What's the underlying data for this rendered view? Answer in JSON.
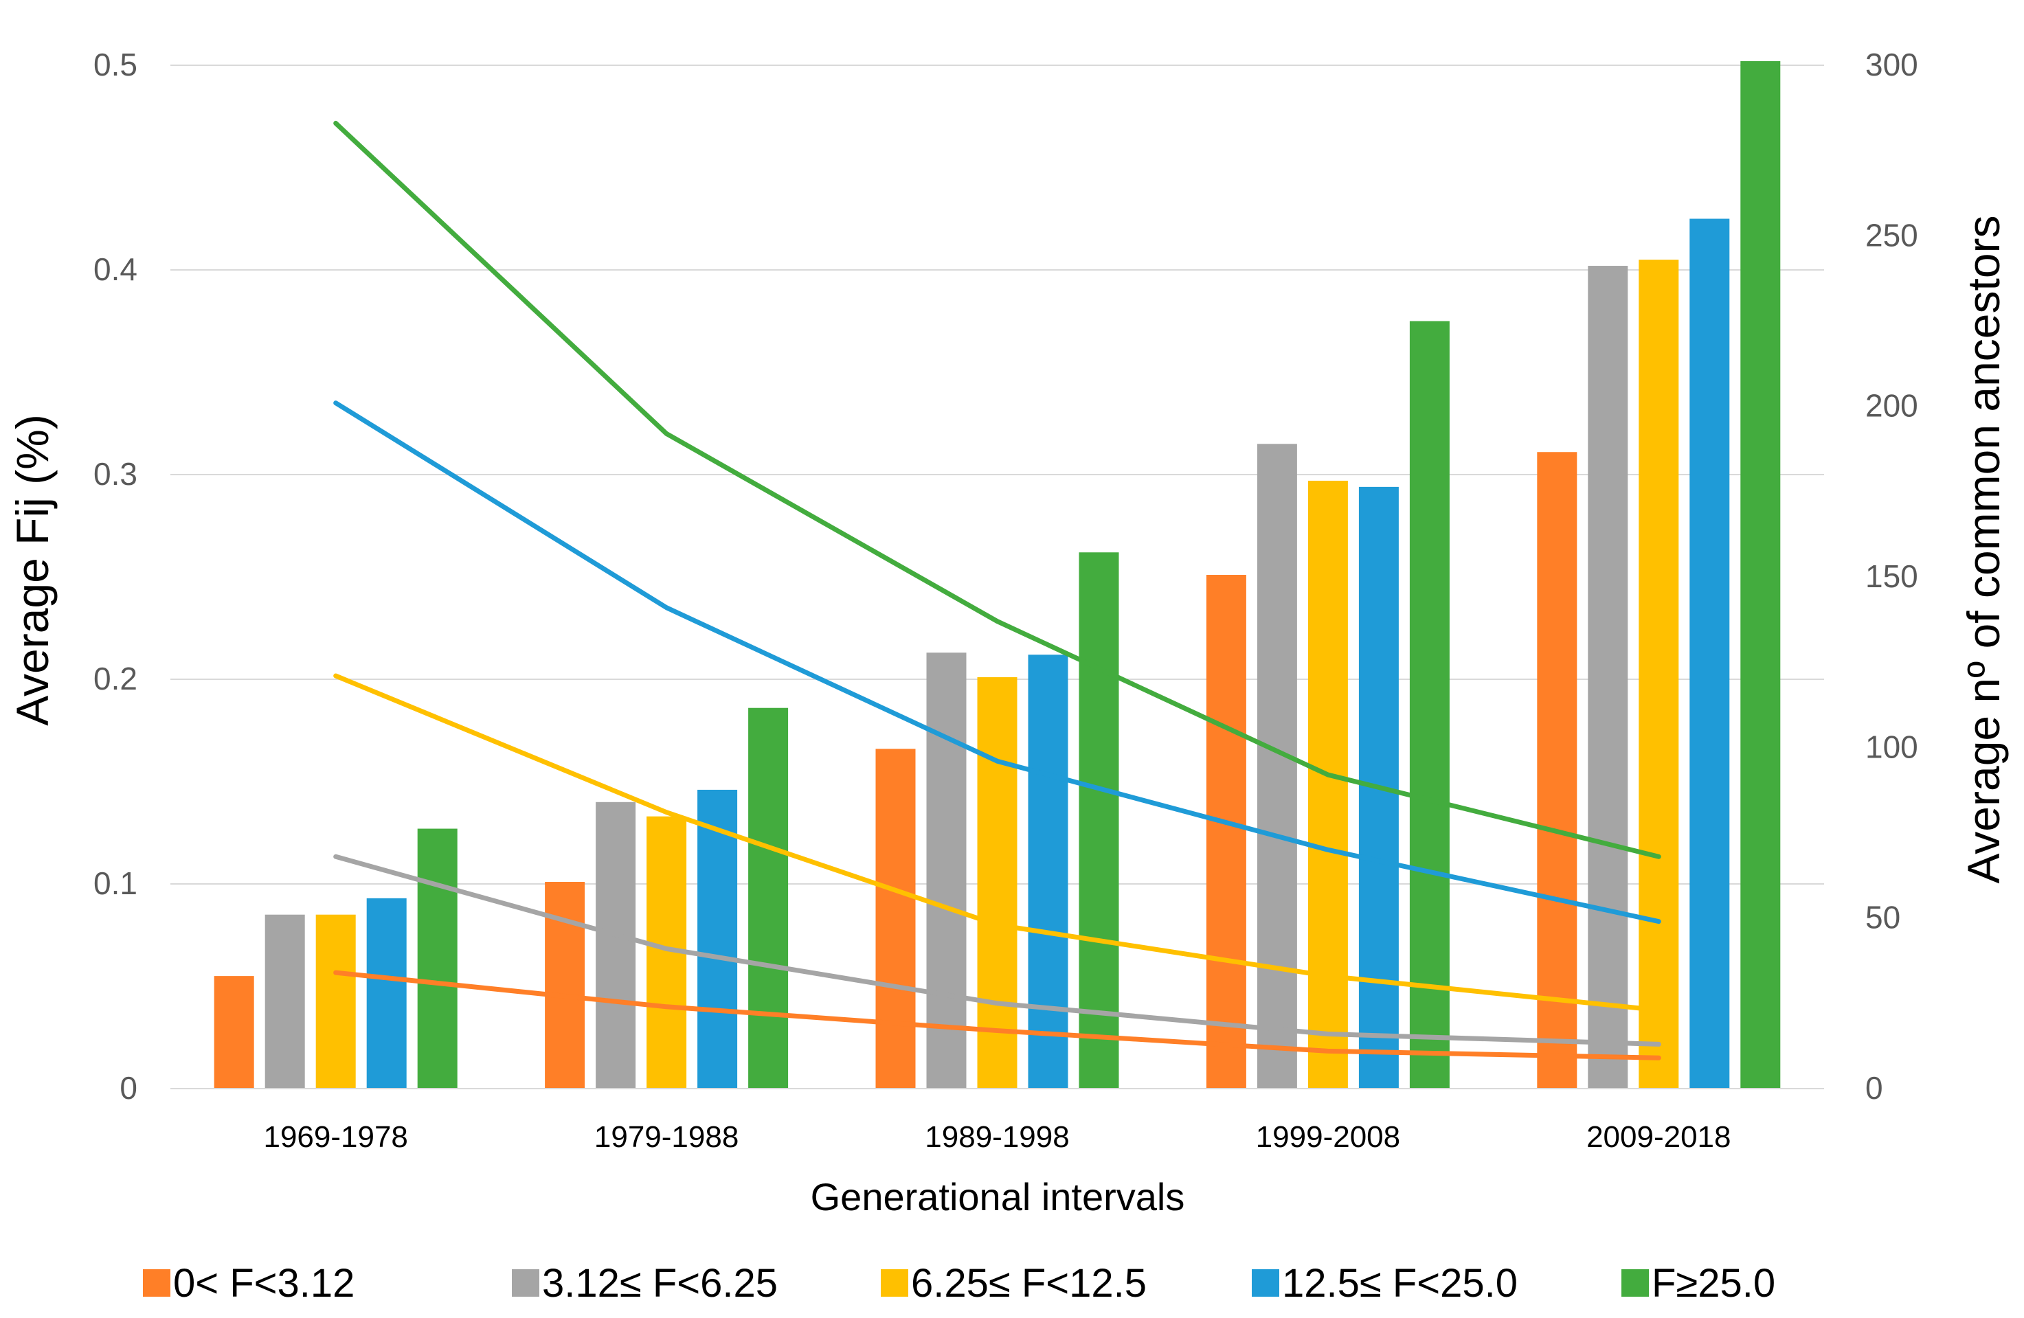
{
  "chart_data": {
    "type": "bar",
    "title": "",
    "xlabel": "Generational intervals",
    "ylabel": "Average Fij (%)",
    "y2label": "Average nº of common ancestors",
    "ylim": [
      0,
      0.5
    ],
    "y2lim": [
      0,
      300
    ],
    "yticks": [
      "0",
      "0.1",
      "0.2",
      "0.3",
      "0.4",
      "0.5"
    ],
    "y2ticks": [
      "0",
      "50",
      "100",
      "150",
      "200",
      "250",
      "300"
    ],
    "categories": [
      "1969-1978",
      "1979-1988",
      "1989-1998",
      "1999-2008",
      "2009-2018"
    ],
    "grid": true,
    "legend_position": "bottom",
    "series": [
      {
        "name": "0< F<3.12",
        "color": "#FF7F27",
        "bar_values": [
          0.055,
          0.101,
          0.166,
          0.251,
          0.311
        ],
        "line_values": [
          34,
          24,
          17,
          11,
          9
        ]
      },
      {
        "name": "3.12≤ F<6.25",
        "color": "#A5A5A5",
        "bar_values": [
          0.085,
          0.14,
          0.213,
          0.315,
          0.402
        ],
        "line_values": [
          68,
          41,
          25,
          16,
          13
        ]
      },
      {
        "name": "6.25≤ F<12.5",
        "color": "#FFC000",
        "bar_values": [
          0.085,
          0.133,
          0.201,
          0.297,
          0.405
        ],
        "line_values": [
          121,
          81,
          48,
          33,
          23
        ]
      },
      {
        "name": "12.5≤ F<25.0",
        "color": "#1F9BD7",
        "bar_values": [
          0.093,
          0.146,
          0.212,
          0.294,
          0.425
        ],
        "line_values": [
          201,
          141,
          96,
          70,
          49
        ]
      },
      {
        "name": "F≥25.0",
        "color": "#43AC3E",
        "bar_values": [
          0.127,
          0.186,
          0.262,
          0.375,
          0.502
        ],
        "line_values": [
          283,
          192,
          137,
          92,
          68
        ]
      }
    ]
  }
}
